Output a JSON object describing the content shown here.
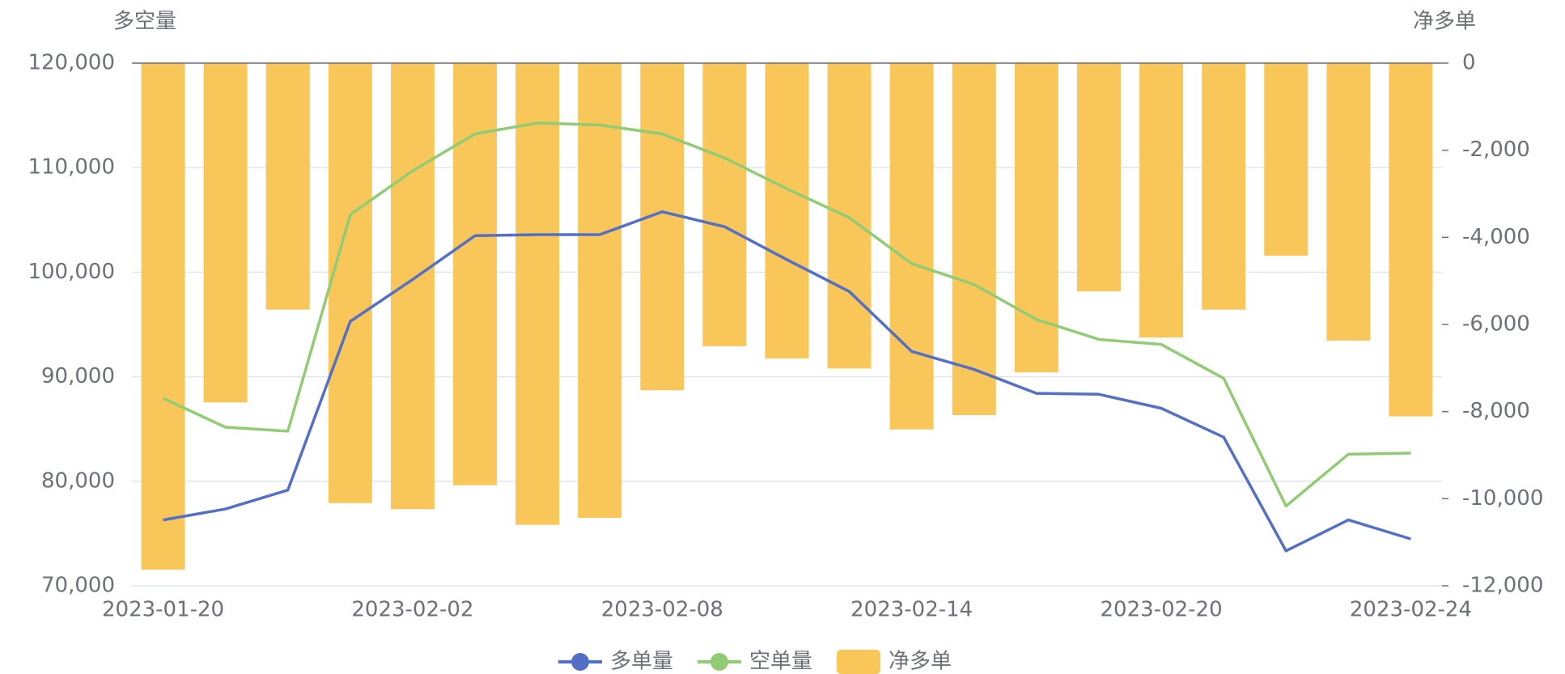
{
  "chart_data": {
    "type": "bar-line",
    "y_label": "多空量",
    "y2_label": "净多单",
    "categories": [
      "2023-01-20",
      null,
      null,
      null,
      "2023-02-02",
      null,
      null,
      null,
      "2023-02-08",
      null,
      null,
      null,
      "2023-02-14",
      null,
      null,
      null,
      "2023-02-20",
      null,
      null,
      null,
      "2023-02-24"
    ],
    "series": [
      {
        "name": "多单量",
        "type": "line",
        "color": "#5470c6",
        "values": [
          76300,
          77350,
          79160,
          95290,
          99300,
          103490,
          103590,
          103590,
          105780,
          104350,
          101200,
          98150,
          92420,
          90700,
          88410,
          88320,
          86980,
          84220,
          73340,
          76300,
          74480
        ]
      },
      {
        "name": "空单量",
        "type": "line",
        "color": "#91cc75",
        "values": [
          87940,
          85170,
          84790,
          105500,
          109700,
          113230,
          114270,
          114080,
          113230,
          110930,
          107980,
          105210,
          100820,
          98820,
          95480,
          93570,
          93090,
          89850,
          77630,
          82590,
          82690
        ]
      },
      {
        "name": "净多单",
        "type": "bar",
        "axis": "y2",
        "color": "#f9c65a",
        "values": [
          -11630,
          -7790,
          -5660,
          -10100,
          -10240,
          -9690,
          -10600,
          -10440,
          -7510,
          -6500,
          -6780,
          -7010,
          -8410,
          -8080,
          -7100,
          -5240,
          -6300,
          -5660,
          -4420,
          -6370,
          -8110
        ]
      }
    ],
    "ylim": [
      70000,
      120000
    ],
    "yticks": [
      {
        "value": 70000,
        "label": "70,000"
      },
      {
        "value": 80000,
        "label": "80,000"
      },
      {
        "value": 90000,
        "label": "90,000"
      },
      {
        "value": 100000,
        "label": "100,000"
      },
      {
        "value": 110000,
        "label": "110,000"
      },
      {
        "value": 120000,
        "label": "120,000"
      }
    ],
    "y2lim": [
      -12000,
      0
    ],
    "y2ticks": [
      {
        "value": -12000,
        "label": "-12,000"
      },
      {
        "value": -10000,
        "label": "-10,000"
      },
      {
        "value": -8000,
        "label": "-8,000"
      },
      {
        "value": -6000,
        "label": "-6,000"
      },
      {
        "value": -4000,
        "label": "-4,000"
      },
      {
        "value": -2000,
        "label": "-2,000"
      },
      0
    ],
    "grid": true
  }
}
